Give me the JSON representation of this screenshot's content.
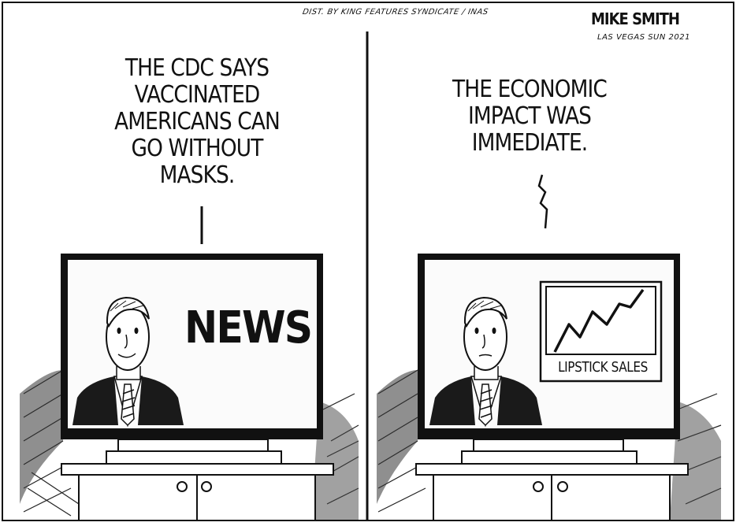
{
  "credit": "DIST. BY KING FEATURES SYNDICATE / INAS",
  "signature": "MIKE SMITH",
  "signature_sub": "LAS VEGAS SUN 2021",
  "left_panel": {
    "caption": "THE CDC SAYS\nVACCINATED\nAMERICANS CAN\nGO WITHOUT\nMASKS.",
    "screen_word": "NEWS"
  },
  "right_panel": {
    "caption": "THE ECONOMIC\nIMPACT WAS\nIMMEDIATE.",
    "chart_label": "LIPSTICK SALES"
  },
  "colors": {
    "ink": "#111111",
    "paper": "#ffffff",
    "screen": "#fbfbfb"
  }
}
